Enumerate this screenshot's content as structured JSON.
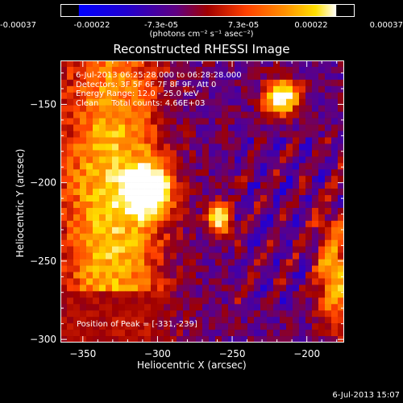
{
  "colorbar": {
    "ticks": [
      "-0.00037",
      "-0.00022",
      "-7.3e-05",
      "7.3e-05",
      "0.00022",
      "0.00037"
    ],
    "units_label": "(photons cm⁻² s⁻¹ asec⁻²)"
  },
  "title": "Reconstructed RHESSI Image",
  "annotations": {
    "time_range": "6-Jul-2013 06:25:28.000 to 06:28:28.000",
    "detectors": "Detectors: 3F 5F 6F 7F 8F 9F, Att 0",
    "energy_range": "Energy Range: 12.0 - 25.0 keV",
    "clean_counts": "Clean     Total counts: 4.66E+03",
    "peak_position": "Position of Peak = [-331,-239]"
  },
  "footer_date": "6-Jul-2013 15:07",
  "chart_data": {
    "type": "heatmap",
    "title": "Reconstructed RHESSI Image",
    "xlabel": "Heliocentric X (arcsec)",
    "ylabel": "Heliocentric Y (arcsec)",
    "xlim": [
      -365,
      -175
    ],
    "ylim": [
      -302,
      -122
    ],
    "x_ticks": [
      -350,
      -300,
      -250,
      -200
    ],
    "y_ticks": [
      -150,
      -200,
      -250,
      -300
    ],
    "colorbar_range": [
      -0.00037,
      0.00037
    ],
    "peak_position": [
      -331,
      -239
    ],
    "colormap": [
      "#0000ff",
      "#3000c0",
      "#600080",
      "#a00000",
      "#ff4000",
      "#ff9000",
      "#ffe000",
      "#ffffff"
    ]
  }
}
